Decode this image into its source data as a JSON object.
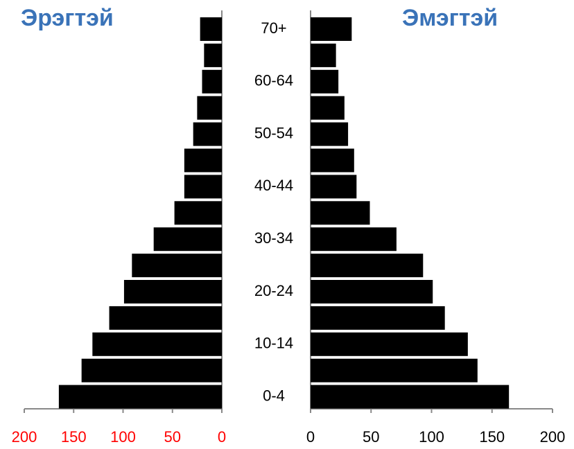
{
  "chart_data": [
    {
      "type": "bar",
      "orientation": "horizontal",
      "title": "Эрэгтэй",
      "title_color": "#3a73b8",
      "values": [
        165,
        142,
        131,
        114,
        99,
        91,
        69,
        48,
        38,
        38,
        29,
        25,
        20,
        18,
        22
      ],
      "color": "#000000",
      "xlim": [
        200,
        0
      ],
      "xticks": [
        200,
        150,
        100,
        50,
        0
      ],
      "tick_color": "#ff0000"
    },
    {
      "type": "bar",
      "orientation": "horizontal",
      "title": "Эмэгтэй",
      "title_color": "#3a73b8",
      "categories": [
        "0-4",
        null,
        "10-14",
        null,
        "20-24",
        null,
        "30-34",
        null,
        "40-44",
        null,
        "50-54",
        null,
        "60-64",
        null,
        "70+"
      ],
      "values": [
        164,
        138,
        130,
        111,
        101,
        93,
        71,
        49,
        38,
        36,
        31,
        28,
        23,
        21,
        34
      ],
      "color": "#000000",
      "xlim": [
        0,
        200
      ],
      "xticks": [
        0,
        50,
        100,
        150,
        200
      ],
      "tick_color": "#000000"
    }
  ]
}
